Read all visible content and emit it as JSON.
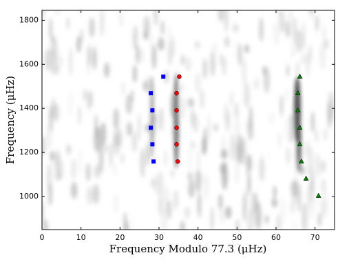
{
  "chart_data": {
    "type": "scatter",
    "xlabel": "Frequency Modulo 77.3 (μHz)",
    "ylabel": "Frequency (μHz)",
    "xlim": [
      0,
      75
    ],
    "ylim": [
      850,
      1845
    ],
    "xticks": [
      0,
      10,
      20,
      30,
      40,
      50,
      60,
      70
    ],
    "yticks": [
      1000,
      1200,
      1400,
      1600,
      1800
    ],
    "series": [
      {
        "color": "#0000ff",
        "marker": "square",
        "x": [
          31.1,
          27.9,
          28.3,
          27.9,
          28.3,
          28.6
        ],
        "values": [
          1544,
          1469,
          1391,
          1312,
          1237,
          1159
        ]
      },
      {
        "color": "#ff0000",
        "marker": "circle",
        "x": [
          35.2,
          34.5,
          34.5,
          34.5,
          34.5,
          34.8
        ],
        "values": [
          1544,
          1469,
          1391,
          1312,
          1237,
          1159
        ]
      },
      {
        "color": "#008000",
        "marker": "triangle",
        "x": [
          66.1,
          65.6,
          65.6,
          66.1,
          66.1,
          66.5,
          67.7,
          70.9
        ],
        "values": [
          1544,
          1469,
          1391,
          1312,
          1237,
          1159,
          1081,
          1003
        ]
      }
    ]
  }
}
